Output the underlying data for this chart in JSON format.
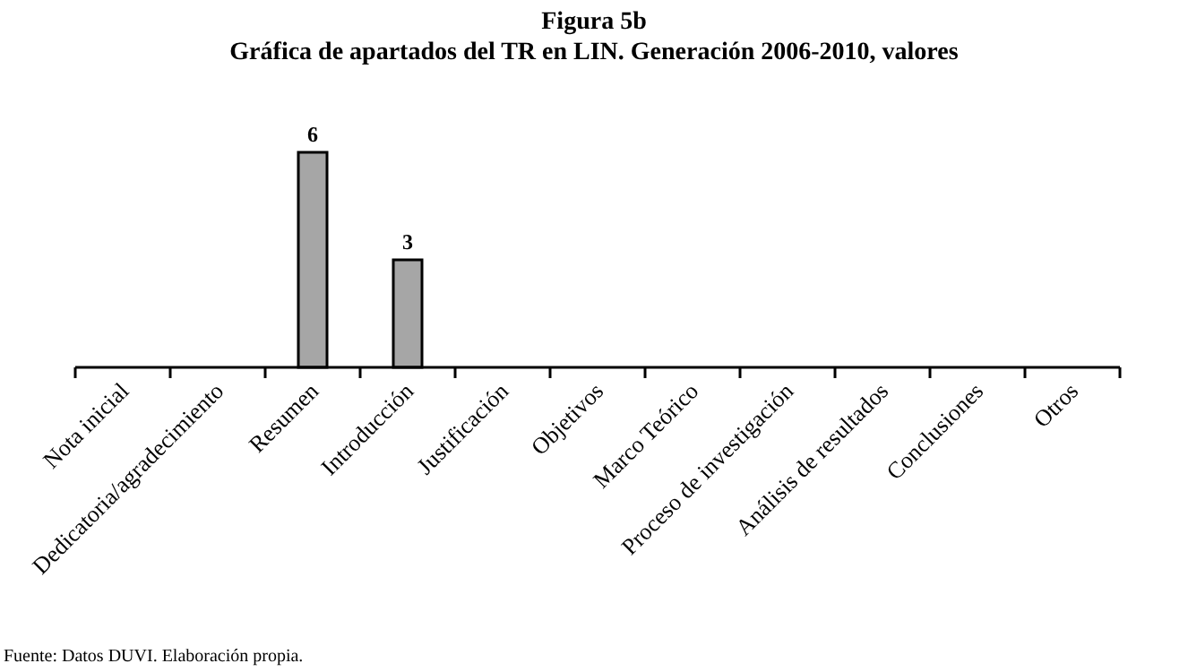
{
  "chart_data": {
    "type": "bar",
    "title": "Figura 5b",
    "subtitle": "Gráfica de apartados del TR en LIN. Generación 2006-2010, valores",
    "categories": [
      "Nota inicial",
      "Dedicatoria/agradecimiento",
      "Resumen",
      "Introducción",
      "Justificación",
      "Objetivos",
      "Marco Teórico",
      "Proceso de investigación",
      "Análisis de resultados",
      "Conclusiones",
      "Otros"
    ],
    "values": [
      0,
      0,
      6,
      3,
      0,
      0,
      0,
      0,
      0,
      0,
      0
    ],
    "value_labels": [
      null,
      null,
      "6",
      "3",
      null,
      null,
      null,
      null,
      null,
      null,
      null
    ],
    "color": "#a6a6a6",
    "annotations": [
      "Fuente: Datos DUVI. Elaboración propia."
    ]
  }
}
